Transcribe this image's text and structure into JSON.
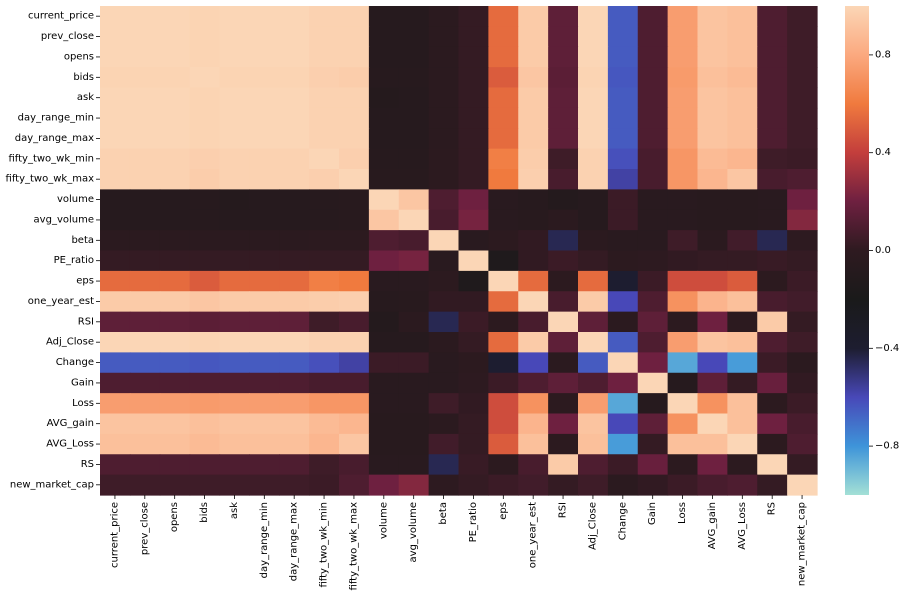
{
  "chart_data": {
    "type": "heatmap",
    "rows": [
      "current_price",
      "prev_close",
      "opens",
      "bids",
      "ask",
      "day_range_min",
      "day_range_max",
      "fifty_two_wk_min",
      "fifty_two_wk_max",
      "volume",
      "avg_volume",
      "beta",
      "PE_ratio",
      "eps",
      "one_year_est",
      "RSI",
      "Adj_Close",
      "Change",
      "Gain",
      "Loss",
      "AVG_gain",
      "AVG_Loss",
      "RS",
      "new_market_cap"
    ],
    "columns": [
      "current_price",
      "prev_close",
      "opens",
      "bids",
      "ask",
      "day_range_min",
      "day_range_max",
      "fifty_two_wk_min",
      "fifty_two_wk_max",
      "volume",
      "avg_volume",
      "beta",
      "PE_ratio",
      "eps",
      "one_year_est",
      "RSI",
      "Adj_Close",
      "Change",
      "Gain",
      "Loss",
      "AVG_gain",
      "AVG_Loss",
      "RS",
      "new_market_cap"
    ],
    "vmin": -1.0,
    "vmax": 1.0,
    "colorbar_ticks": [
      {
        "value": 0.8,
        "label": "0.8"
      },
      {
        "value": 0.4,
        "label": "0.4"
      },
      {
        "value": 0.0,
        "label": "0.0"
      },
      {
        "value": -0.4,
        "label": "−0.4"
      },
      {
        "value": -0.8,
        "label": "−0.8"
      }
    ],
    "colormap": [
      "#a3e0d6",
      "#3e94d9",
      "#4848b8",
      "#1d1d30",
      "#1a1a1a",
      "#2e1a20",
      "#6e2040",
      "#c33e3c",
      "#f07a3e",
      "#fba97f",
      "#fbd6b6"
    ],
    "values": [
      [
        1,
        1,
        1,
        0.99,
        1,
        1,
        1,
        0.98,
        0.98,
        -0.08,
        -0.08,
        -0.03,
        0.02,
        0.55,
        0.95,
        0.15,
        1,
        -0.65,
        0.1,
        0.75,
        0.92,
        0.9,
        0.1,
        0.05
      ],
      [
        1,
        1,
        1,
        0.99,
        1,
        1,
        1,
        0.98,
        0.98,
        -0.08,
        -0.08,
        -0.03,
        0.02,
        0.55,
        0.95,
        0.15,
        1,
        -0.65,
        0.1,
        0.75,
        0.92,
        0.9,
        0.1,
        0.05
      ],
      [
        1,
        1,
        1,
        0.99,
        1,
        1,
        1,
        0.98,
        0.98,
        -0.08,
        -0.08,
        -0.03,
        0.02,
        0.55,
        0.95,
        0.15,
        1,
        -0.65,
        0.1,
        0.75,
        0.92,
        0.9,
        0.1,
        0.05
      ],
      [
        0.99,
        0.99,
        0.99,
        1,
        0.99,
        0.99,
        0.99,
        0.97,
        0.96,
        -0.07,
        -0.07,
        -0.03,
        0.02,
        0.5,
        0.93,
        0.14,
        0.99,
        -0.64,
        0.1,
        0.74,
        0.9,
        0.88,
        0.1,
        0.05
      ],
      [
        1,
        1,
        1,
        0.99,
        1,
        1,
        1,
        0.98,
        0.98,
        -0.09,
        -0.08,
        -0.03,
        0.02,
        0.55,
        0.95,
        0.15,
        1,
        -0.65,
        0.1,
        0.75,
        0.92,
        0.9,
        0.1,
        0.05
      ],
      [
        1,
        1,
        1,
        0.99,
        1,
        1,
        1,
        0.98,
        0.98,
        -0.08,
        -0.08,
        -0.03,
        0.02,
        0.55,
        0.95,
        0.15,
        1,
        -0.65,
        0.1,
        0.75,
        0.92,
        0.9,
        0.1,
        0.05
      ],
      [
        1,
        1,
        1,
        0.99,
        1,
        1,
        1,
        0.98,
        0.98,
        -0.08,
        -0.08,
        -0.03,
        0.02,
        0.55,
        0.95,
        0.15,
        1,
        -0.65,
        0.1,
        0.75,
        0.92,
        0.9,
        0.1,
        0.05
      ],
      [
        0.98,
        0.98,
        0.98,
        0.97,
        0.98,
        0.98,
        0.98,
        1,
        0.97,
        -0.07,
        -0.07,
        -0.02,
        0.02,
        0.62,
        0.96,
        0.05,
        0.98,
        -0.62,
        0.08,
        0.72,
        0.88,
        0.86,
        0.05,
        0.04
      ],
      [
        0.98,
        0.98,
        0.98,
        0.96,
        0.98,
        0.98,
        0.98,
        0.97,
        1,
        -0.06,
        -0.06,
        -0.02,
        0.02,
        0.6,
        0.97,
        0.08,
        0.98,
        -0.57,
        0.08,
        0.72,
        0.86,
        0.93,
        0.08,
        0.1
      ],
      [
        -0.08,
        -0.08,
        -0.08,
        -0.07,
        -0.09,
        -0.08,
        -0.08,
        -0.07,
        -0.06,
        1,
        0.93,
        0.1,
        0.2,
        -0.05,
        -0.07,
        -0.1,
        -0.08,
        0.04,
        -0.05,
        -0.05,
        -0.06,
        -0.06,
        -0.05,
        0.2
      ],
      [
        -0.08,
        -0.08,
        -0.08,
        -0.07,
        -0.08,
        -0.08,
        -0.08,
        -0.07,
        -0.06,
        0.93,
        1,
        0.08,
        0.22,
        -0.05,
        -0.06,
        -0.03,
        -0.08,
        0.04,
        -0.05,
        -0.05,
        -0.06,
        -0.06,
        -0.05,
        0.25
      ],
      [
        -0.03,
        -0.03,
        -0.03,
        -0.03,
        -0.03,
        -0.03,
        -0.03,
        -0.02,
        -0.02,
        0.1,
        0.08,
        1,
        -0.05,
        -0.02,
        0.01,
        -0.45,
        -0.03,
        -0.05,
        -0.05,
        0.05,
        -0.03,
        0.06,
        -0.45,
        -0.01
      ],
      [
        0.02,
        0.02,
        0.02,
        0.02,
        0.02,
        0.02,
        0.02,
        0.02,
        0.02,
        0.2,
        0.22,
        -0.05,
        1,
        -0.15,
        0.01,
        0.04,
        0.02,
        -0.02,
        -0.01,
        0.01,
        0.02,
        0.02,
        0.03,
        0.02
      ],
      [
        0.55,
        0.55,
        0.55,
        0.5,
        0.55,
        0.55,
        0.55,
        0.62,
        0.6,
        -0.05,
        -0.05,
        -0.02,
        -0.15,
        1,
        0.55,
        -0.02,
        0.55,
        -0.4,
        0.04,
        0.45,
        0.45,
        0.5,
        -0.02,
        0.04
      ],
      [
        0.95,
        0.95,
        0.95,
        0.93,
        0.95,
        0.95,
        0.95,
        0.96,
        0.97,
        -0.07,
        -0.06,
        0.01,
        0.01,
        0.55,
        1,
        0.08,
        0.95,
        -0.6,
        0.1,
        0.7,
        0.85,
        0.9,
        0.08,
        0.06
      ],
      [
        0.15,
        0.15,
        0.15,
        0.14,
        0.15,
        0.15,
        0.15,
        0.05,
        0.08,
        -0.1,
        -0.03,
        -0.45,
        0.04,
        -0.02,
        0.08,
        1,
        0.15,
        -0.03,
        0.15,
        -0.02,
        0.2,
        -0.02,
        0.95,
        0.02
      ],
      [
        1,
        1,
        1,
        0.99,
        1,
        1,
        1,
        0.98,
        0.98,
        -0.08,
        -0.08,
        -0.03,
        0.02,
        0.55,
        0.95,
        0.15,
        1,
        -0.65,
        0.1,
        0.75,
        0.92,
        0.9,
        0.1,
        0.05
      ],
      [
        -0.65,
        -0.65,
        -0.65,
        -0.64,
        -0.65,
        -0.65,
        -0.65,
        -0.62,
        -0.57,
        0.04,
        0.04,
        -0.05,
        -0.02,
        -0.4,
        -0.6,
        -0.03,
        -0.65,
        1,
        0.2,
        -0.85,
        -0.6,
        -0.82,
        0.04,
        -0.03
      ],
      [
        0.1,
        0.1,
        0.1,
        0.1,
        0.1,
        0.1,
        0.1,
        0.08,
        0.08,
        -0.05,
        -0.05,
        -0.05,
        -0.01,
        0.04,
        0.1,
        0.15,
        0.1,
        0.2,
        1,
        -0.08,
        0.15,
        0.02,
        0.18,
        0.01
      ],
      [
        0.75,
        0.75,
        0.75,
        0.74,
        0.75,
        0.75,
        0.75,
        0.72,
        0.72,
        -0.05,
        -0.05,
        0.05,
        0.01,
        0.45,
        0.7,
        -0.02,
        0.75,
        -0.85,
        -0.08,
        1,
        0.7,
        0.9,
        -0.02,
        0.04
      ],
      [
        0.92,
        0.92,
        0.92,
        0.9,
        0.92,
        0.92,
        0.92,
        0.88,
        0.86,
        -0.06,
        -0.06,
        -0.03,
        0.02,
        0.45,
        0.85,
        0.2,
        0.92,
        -0.6,
        0.15,
        0.7,
        1,
        0.9,
        0.2,
        0.08
      ],
      [
        0.9,
        0.9,
        0.9,
        0.88,
        0.9,
        0.9,
        0.9,
        0.86,
        0.93,
        -0.06,
        -0.06,
        0.06,
        0.02,
        0.5,
        0.9,
        -0.02,
        0.9,
        -0.82,
        0.02,
        0.9,
        0.9,
        1,
        -0.02,
        0.1
      ],
      [
        0.1,
        0.1,
        0.1,
        0.1,
        0.1,
        0.1,
        0.1,
        0.05,
        0.08,
        -0.05,
        -0.05,
        -0.45,
        0.03,
        -0.02,
        0.08,
        0.95,
        0.1,
        0.04,
        0.18,
        -0.02,
        0.2,
        -0.02,
        1,
        0.02
      ],
      [
        0.05,
        0.05,
        0.05,
        0.05,
        0.05,
        0.05,
        0.05,
        0.04,
        0.1,
        0.2,
        0.25,
        -0.01,
        0.02,
        0.04,
        0.06,
        0.02,
        0.05,
        -0.03,
        0.01,
        0.04,
        0.08,
        0.1,
        0.02,
        1
      ]
    ]
  }
}
